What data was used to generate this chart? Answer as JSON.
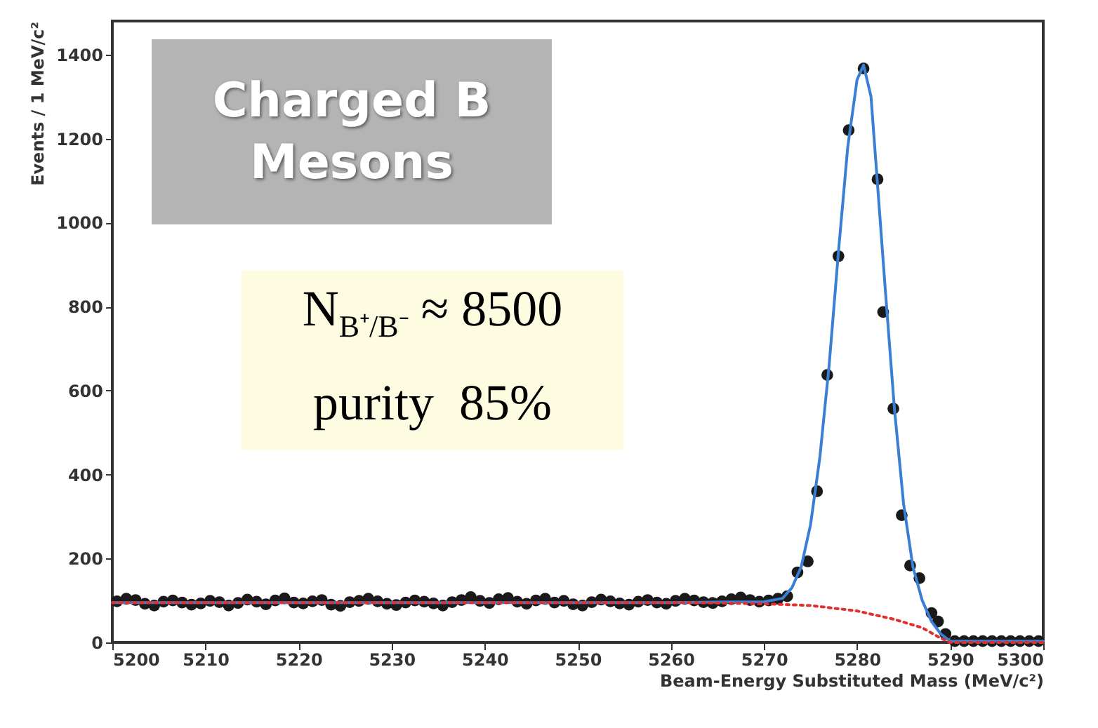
{
  "chart_data": {
    "type": "scatter",
    "xlabel": "Beam-Energy Substituted Mass (MeV/c²)",
    "ylabel": "Events / 1 MeV/c²",
    "xlim": [
      5200,
      5300
    ],
    "xticks": [
      5200,
      5210,
      5220,
      5230,
      5240,
      5250,
      5260,
      5270,
      5280,
      5290,
      5300
    ],
    "ylim": [
      0,
      1480
    ],
    "yticks": [
      0,
      200,
      400,
      600,
      800,
      1000,
      1200,
      1400
    ],
    "grid": false,
    "annotations": [
      "Charged B Mesons",
      "N$_{B⁺/B⁻}$ ≈ 8500",
      "purity  85%"
    ],
    "series": [
      {
        "type": "line",
        "color": "#3a7fd5",
        "line_style": "solid",
        "x": [
          5200,
          5210,
          5220,
          5230,
          5240,
          5250,
          5260,
          5270,
          5272,
          5273,
          5274,
          5275,
          5276,
          5277,
          5278,
          5279,
          5280,
          5280.7,
          5281.5,
          5282,
          5283,
          5284,
          5285,
          5286,
          5287,
          5288,
          5289,
          5290,
          5300
        ],
        "values": [
          95,
          95,
          95,
          95,
          95,
          95,
          95,
          97,
          105,
          130,
          180,
          280,
          440,
          660,
          930,
          1180,
          1340,
          1375,
          1300,
          1150,
          850,
          560,
          330,
          180,
          100,
          50,
          20,
          3,
          3
        ]
      },
      {
        "type": "line",
        "color": "#e03030",
        "line_style": "dotted",
        "x": [
          5200,
          5210,
          5220,
          5230,
          5240,
          5250,
          5260,
          5265,
          5270,
          5275,
          5280,
          5284,
          5287,
          5289,
          5290,
          5300
        ],
        "values": [
          95,
          95,
          95,
          95,
          95,
          95,
          95,
          94,
          92,
          88,
          75,
          55,
          35,
          10,
          0,
          0
        ]
      },
      {
        "color": "#1a1a1a",
        "marker": "circle",
        "x": [
          5200.5,
          5201.5,
          5202.5,
          5203.5,
          5204.5,
          5205.5,
          5206.5,
          5207.5,
          5208.5,
          5209.5,
          5210.5,
          5211.5,
          5212.5,
          5213.5,
          5214.5,
          5215.5,
          5216.5,
          5217.5,
          5218.5,
          5219.5,
          5220.5,
          5221.5,
          5222.5,
          5223.5,
          5224.5,
          5225.5,
          5226.5,
          5227.5,
          5228.5,
          5229.5,
          5230.5,
          5231.5,
          5232.5,
          5233.5,
          5234.5,
          5235.5,
          5236.5,
          5237.5,
          5238.5,
          5239.5,
          5240.5,
          5241.5,
          5242.5,
          5243.5,
          5244.5,
          5245.5,
          5246.5,
          5247.5,
          5248.5,
          5249.5,
          5250.5,
          5251.5,
          5252.5,
          5253.5,
          5254.5,
          5255.5,
          5256.5,
          5257.5,
          5258.5,
          5259.5,
          5260.5,
          5261.5,
          5262.5,
          5263.5,
          5264.5,
          5265.5,
          5266.5,
          5267.5,
          5268.5,
          5269.5,
          5270.5,
          5271.5,
          5272.5,
          5273.6,
          5274.7,
          5275.7,
          5276.8,
          5278.0,
          5279.1,
          5280.7,
          5282.2,
          5282.8,
          5283.9,
          5284.8,
          5285.7,
          5286.7,
          5288.0,
          5288.7,
          5289.5,
          5290.5,
          5291.5,
          5292.5,
          5293.5,
          5294.5,
          5295.5,
          5296.5,
          5297.5,
          5298.5,
          5299.5
        ],
        "values": [
          98,
          104,
          101,
          92,
          88,
          97,
          100,
          95,
          90,
          93,
          99,
          96,
          88,
          94,
          102,
          97,
          91,
          100,
          105,
          95,
          93,
          98,
          101,
          90,
          87,
          96,
          99,
          104,
          98,
          92,
          89,
          95,
          100,
          97,
          93,
          88,
          96,
          101,
          108,
          99,
          94,
          103,
          106,
          97,
          92,
          100,
          104,
          95,
          99,
          91,
          88,
          96,
          102,
          98,
          93,
          90,
          97,
          101,
          95,
          92,
          99,
          104,
          100,
          96,
          94,
          98,
          103,
          107,
          101,
          97,
          100,
          104,
          110,
          167,
          193,
          360,
          637,
          920,
          1220,
          1367,
          1103,
          787,
          557,
          303,
          183,
          153,
          70,
          50,
          20,
          3,
          3,
          3,
          3,
          3,
          3,
          3,
          3,
          3,
          3
        ]
      }
    ]
  }
}
